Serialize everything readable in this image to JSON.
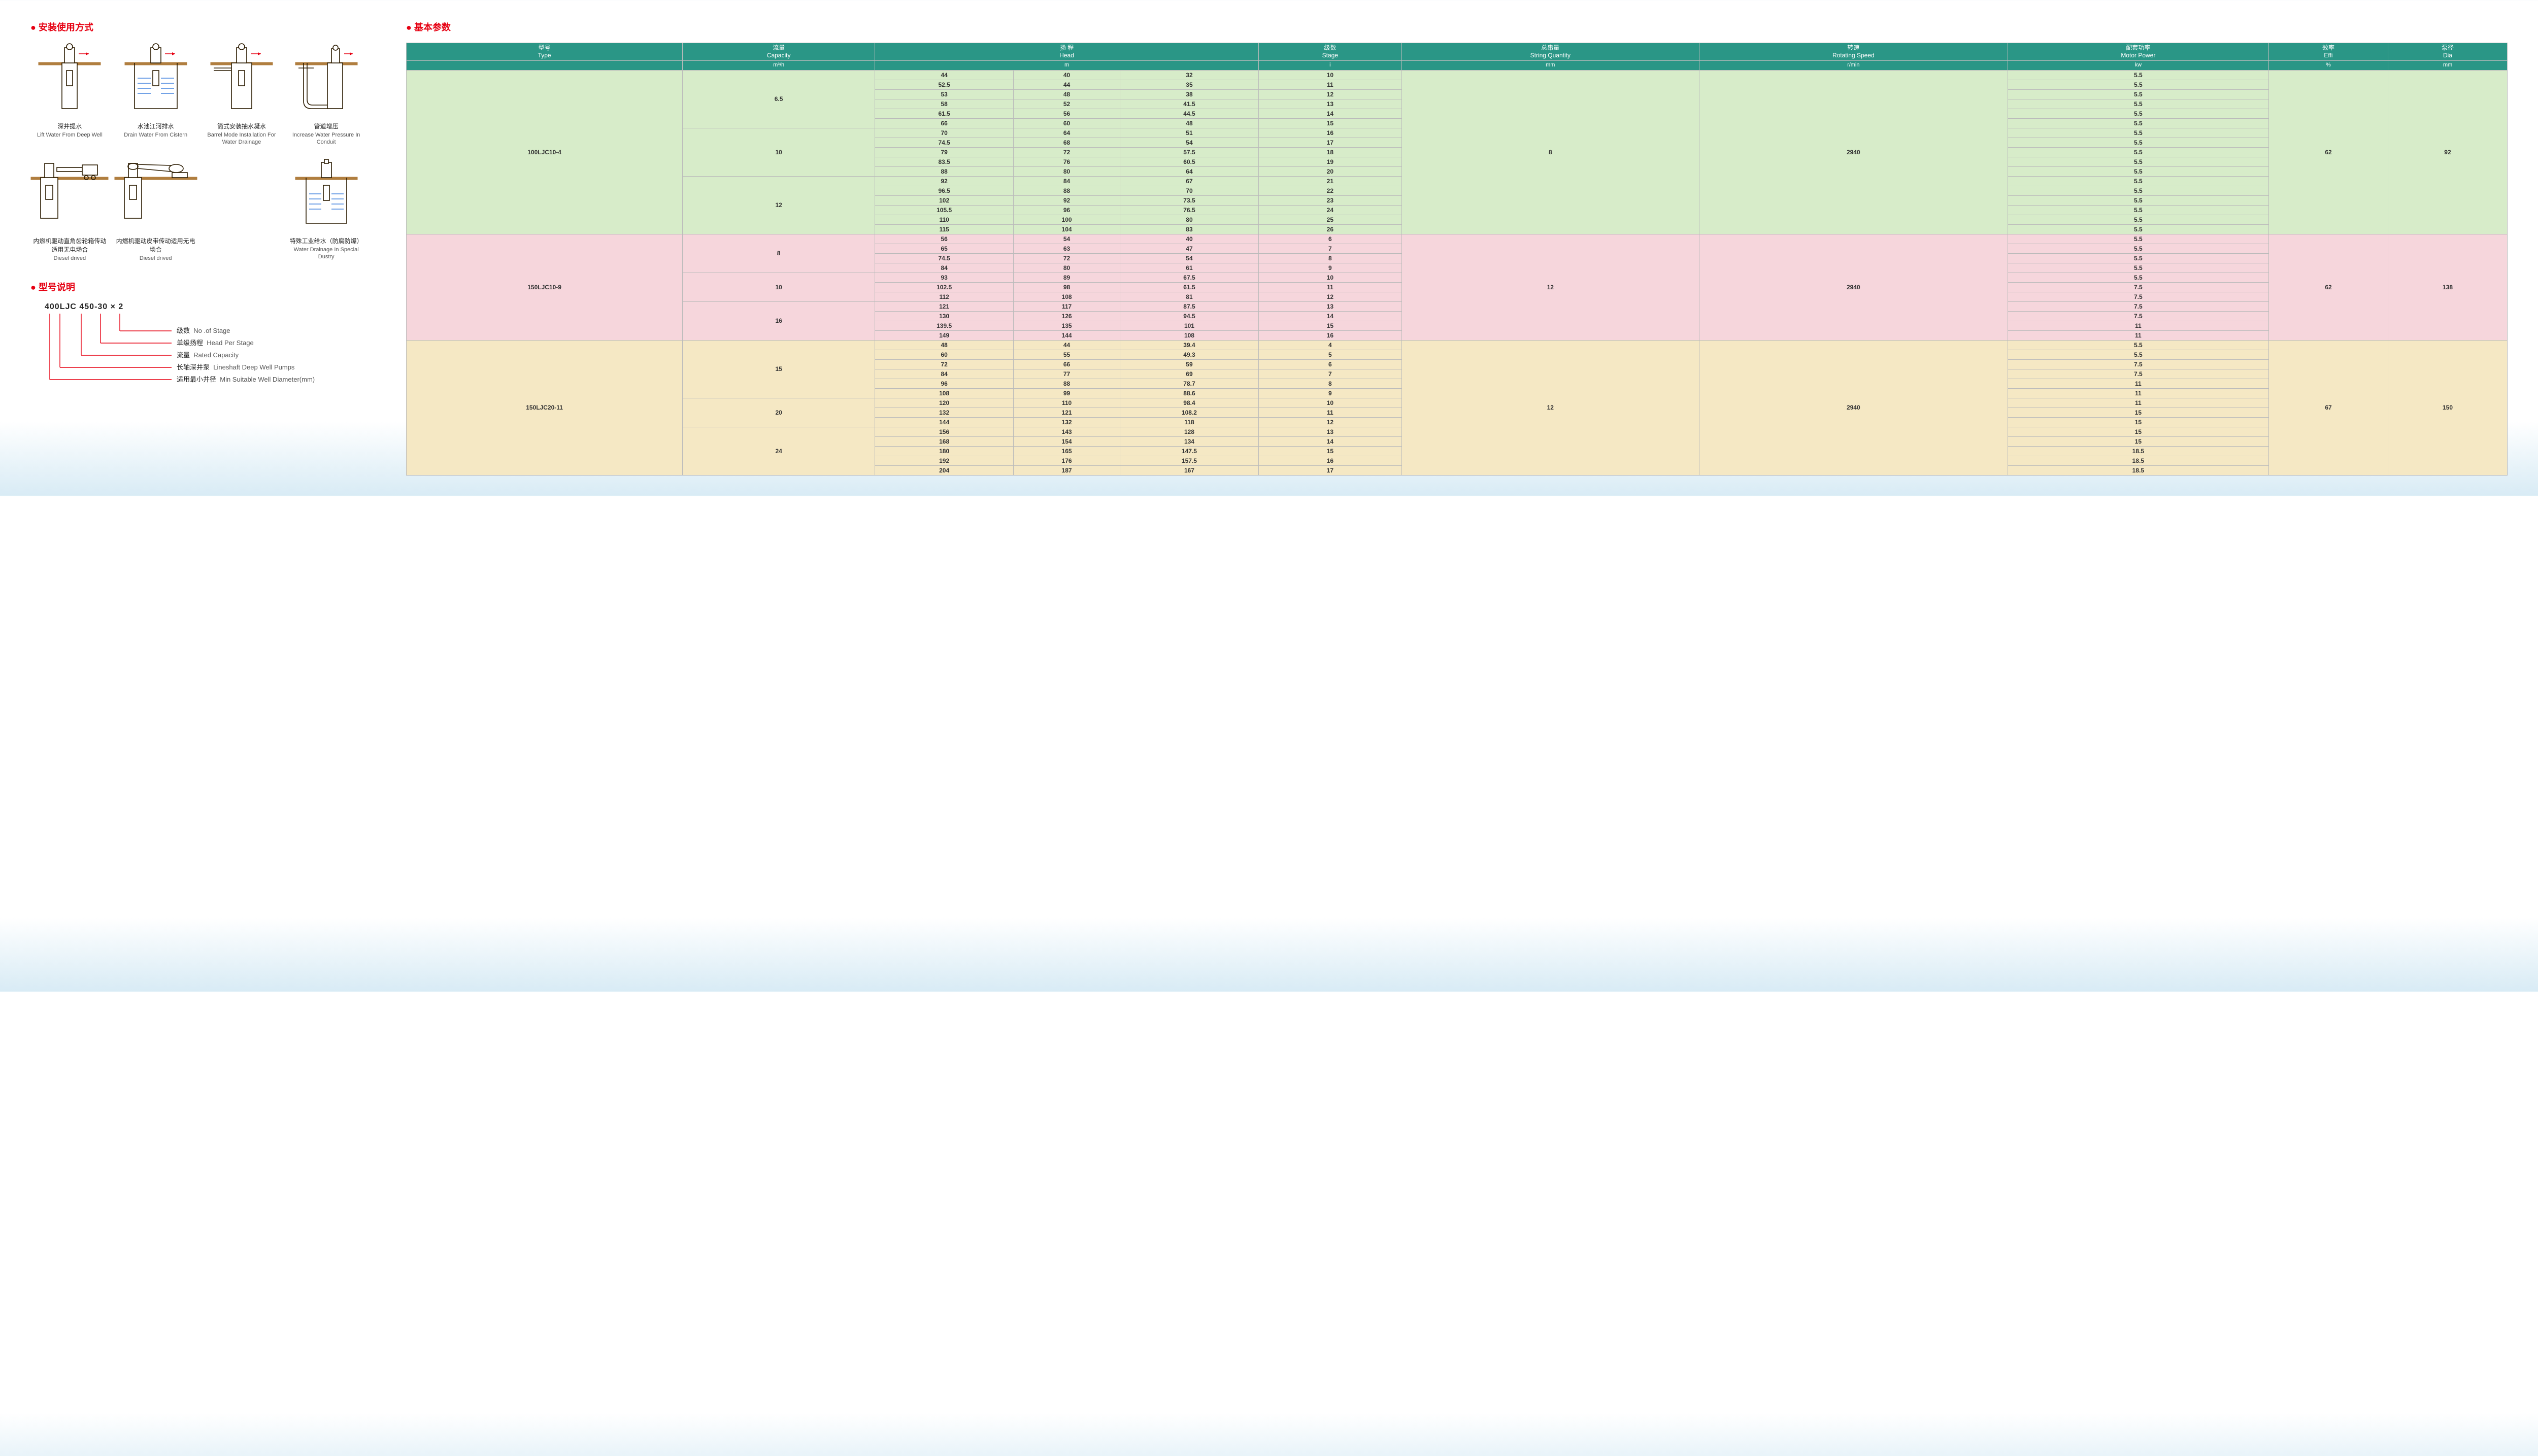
{
  "sections": {
    "install_title": "安装使用方式",
    "model_title": "型号说明",
    "params_title": "基本参数"
  },
  "diagrams": [
    {
      "cn": "深井提水",
      "en": "Lift Water From Deep Well"
    },
    {
      "cn": "水池江河排水",
      "en": "Drain Water From Cistern"
    },
    {
      "cn": "筒式安装抽水凝水",
      "en": "Barrel Mode Installation For Water Drainage"
    },
    {
      "cn": "管道增压",
      "en": "Increase Water Pressure In Conduit"
    },
    {
      "cn": "内燃机驱动直角齿轮箱传动适用无电场合",
      "en": "Diesel drived"
    },
    {
      "cn": "内燃机驱动皮带传动适用无电场合",
      "en": "Diesel drived"
    },
    {
      "cn": "特殊工业给水（防腐防爆）",
      "en": "Water Drainage In Special Dustry"
    }
  ],
  "model": {
    "code": "400LJC 450-30 × 2",
    "legend": [
      {
        "cn": "级数",
        "en": "No .of Stage"
      },
      {
        "cn": "单级扬程",
        "en": "Head Per Stage"
      },
      {
        "cn": "流量",
        "en": "Rated Capacity"
      },
      {
        "cn": "长轴深井泵",
        "en": "Lineshaft Deep Well Pumps"
      },
      {
        "cn": "适用最小井径",
        "en": "Min Suitable Well Diameter(mm)"
      }
    ]
  },
  "table": {
    "headers": [
      {
        "cn": "型号",
        "en": "Type",
        "unit": ""
      },
      {
        "cn": "流量",
        "en": "Capacity",
        "unit": "m³/h"
      },
      {
        "cn": "扬 程",
        "en": "Head",
        "unit": "m",
        "colspan": 3
      },
      {
        "cn": "级数",
        "en": "Stage",
        "unit": "i"
      },
      {
        "cn": "总串量",
        "en": "String Quantity",
        "unit": "mm"
      },
      {
        "cn": "转速",
        "en": "Rotating Speed",
        "unit": "r/min"
      },
      {
        "cn": "配套功率",
        "en": "Motor Power",
        "unit": "kw"
      },
      {
        "cn": "效率",
        "en": "Effi",
        "unit": "%"
      },
      {
        "cn": "泵径",
        "en": "Dia",
        "unit": "mm"
      }
    ],
    "groups": [
      {
        "class": "g-green",
        "type": "100LJC10-4",
        "string_qty": "8",
        "speed": "2940",
        "effi": "62",
        "dia": "92",
        "cap_groups": [
          {
            "cap": "6.5",
            "rows": [
              [
                "44",
                "40",
                "32",
                "10",
                "5.5"
              ],
              [
                "52.5",
                "44",
                "35",
                "11",
                "5.5"
              ],
              [
                "53",
                "48",
                "38",
                "12",
                "5.5"
              ],
              [
                "58",
                "52",
                "41.5",
                "13",
                "5.5"
              ],
              [
                "61.5",
                "56",
                "44.5",
                "14",
                "5.5"
              ],
              [
                "66",
                "60",
                "48",
                "15",
                "5.5"
              ]
            ]
          },
          {
            "cap": "10",
            "rows": [
              [
                "70",
                "64",
                "51",
                "16",
                "5.5"
              ],
              [
                "74.5",
                "68",
                "54",
                "17",
                "5.5"
              ],
              [
                "79",
                "72",
                "57.5",
                "18",
                "5.5"
              ],
              [
                "83.5",
                "76",
                "60.5",
                "19",
                "5.5"
              ],
              [
                "88",
                "80",
                "64",
                "20",
                "5.5"
              ]
            ]
          },
          {
            "cap": "12",
            "rows": [
              [
                "92",
                "84",
                "67",
                "21",
                "5.5"
              ],
              [
                "96.5",
                "88",
                "70",
                "22",
                "5.5"
              ],
              [
                "102",
                "92",
                "73.5",
                "23",
                "5.5"
              ],
              [
                "105.5",
                "96",
                "76.5",
                "24",
                "5.5"
              ],
              [
                "110",
                "100",
                "80",
                "25",
                "5.5"
              ],
              [
                "115",
                "104",
                "83",
                "26",
                "5.5"
              ]
            ]
          }
        ]
      },
      {
        "class": "g-pink",
        "type": "150LJC10-9",
        "string_qty": "12",
        "speed": "2940",
        "effi": "62",
        "dia": "138",
        "cap_groups": [
          {
            "cap": "8",
            "rows": [
              [
                "56",
                "54",
                "40",
                "6",
                "5.5"
              ],
              [
                "65",
                "63",
                "47",
                "7",
                "5.5"
              ],
              [
                "74.5",
                "72",
                "54",
                "8",
                "5.5"
              ],
              [
                "84",
                "80",
                "61",
                "9",
                "5.5"
              ]
            ]
          },
          {
            "cap": "10",
            "rows": [
              [
                "93",
                "89",
                "67.5",
                "10",
                "5.5"
              ],
              [
                "102.5",
                "98",
                "61.5",
                "11",
                "7.5"
              ],
              [
                "112",
                "108",
                "81",
                "12",
                "7.5"
              ]
            ]
          },
          {
            "cap": "16",
            "rows": [
              [
                "121",
                "117",
                "87.5",
                "13",
                "7.5"
              ],
              [
                "130",
                "126",
                "94.5",
                "14",
                "7.5"
              ],
              [
                "139.5",
                "135",
                "101",
                "15",
                "11"
              ],
              [
                "149",
                "144",
                "108",
                "16",
                "11"
              ]
            ]
          }
        ]
      },
      {
        "class": "g-tan",
        "type": "150LJC20-11",
        "string_qty": "12",
        "speed": "2940",
        "effi": "67",
        "dia": "150",
        "cap_groups": [
          {
            "cap": "15",
            "rows": [
              [
                "48",
                "44",
                "39.4",
                "4",
                "5.5"
              ],
              [
                "60",
                "55",
                "49.3",
                "5",
                "5.5"
              ],
              [
                "72",
                "66",
                "59",
                "6",
                "7.5"
              ],
              [
                "84",
                "77",
                "69",
                "7",
                "7.5"
              ],
              [
                "96",
                "88",
                "78.7",
                "8",
                "11"
              ],
              [
                "108",
                "99",
                "88.6",
                "9",
                "11"
              ]
            ]
          },
          {
            "cap": "20",
            "rows": [
              [
                "120",
                "110",
                "98.4",
                "10",
                "11"
              ],
              [
                "132",
                "121",
                "108.2",
                "11",
                "15"
              ],
              [
                "144",
                "132",
                "118",
                "12",
                "15"
              ]
            ]
          },
          {
            "cap": "24",
            "rows": [
              [
                "156",
                "143",
                "128",
                "13",
                "15"
              ],
              [
                "168",
                "154",
                "134",
                "14",
                "15"
              ],
              [
                "180",
                "165",
                "147.5",
                "15",
                "18.5"
              ],
              [
                "192",
                "176",
                "157.5",
                "16",
                "18.5"
              ],
              [
                "204",
                "187",
                "167",
                "17",
                "18.5"
              ]
            ]
          }
        ]
      }
    ]
  },
  "colors": {
    "accent": "#e60012",
    "th_bg": "#2a9686",
    "group_green": "#d7ecc9",
    "group_pink": "#f6d6dc",
    "group_tan": "#f5e8c4"
  }
}
